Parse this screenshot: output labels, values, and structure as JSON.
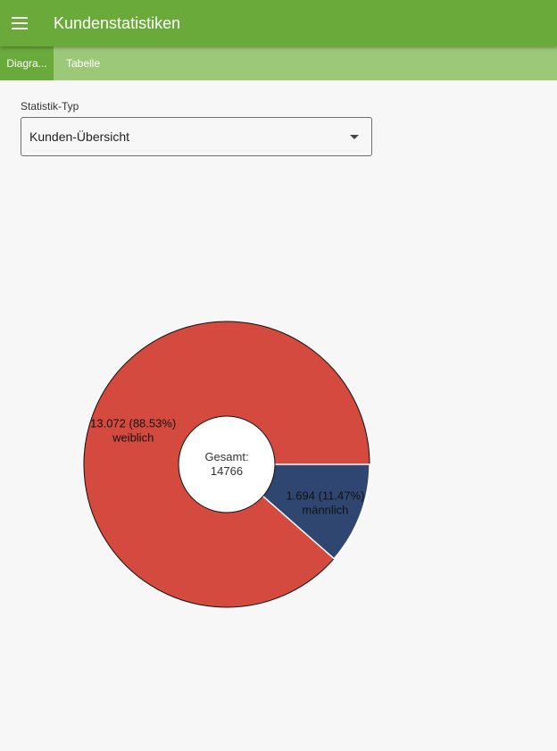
{
  "app": {
    "title": "Kundenstatistiken"
  },
  "tabs": [
    {
      "label": "Diagra...",
      "active": true
    },
    {
      "label": "Tabelle",
      "active": false
    }
  ],
  "filter": {
    "label": "Statistik-Typ",
    "selected": "Kunden-Übersicht"
  },
  "chart_data": {
    "type": "pie",
    "donut": true,
    "center_label": "Gesamt:",
    "total": "14766",
    "slices": [
      {
        "name": "weiblich",
        "value": 13072,
        "value_label": "13.072 (88.53%)",
        "percent": 88.53,
        "color": "#d44a3f"
      },
      {
        "name": "männlich",
        "value": 1694,
        "value_label": "1.694 (11.47%)",
        "percent": 11.47,
        "color": "#2f4670"
      }
    ]
  },
  "colors": {
    "appbar": "#6aaa3a",
    "tabbar": "#9cc87a",
    "background": "#f7f7f7"
  }
}
